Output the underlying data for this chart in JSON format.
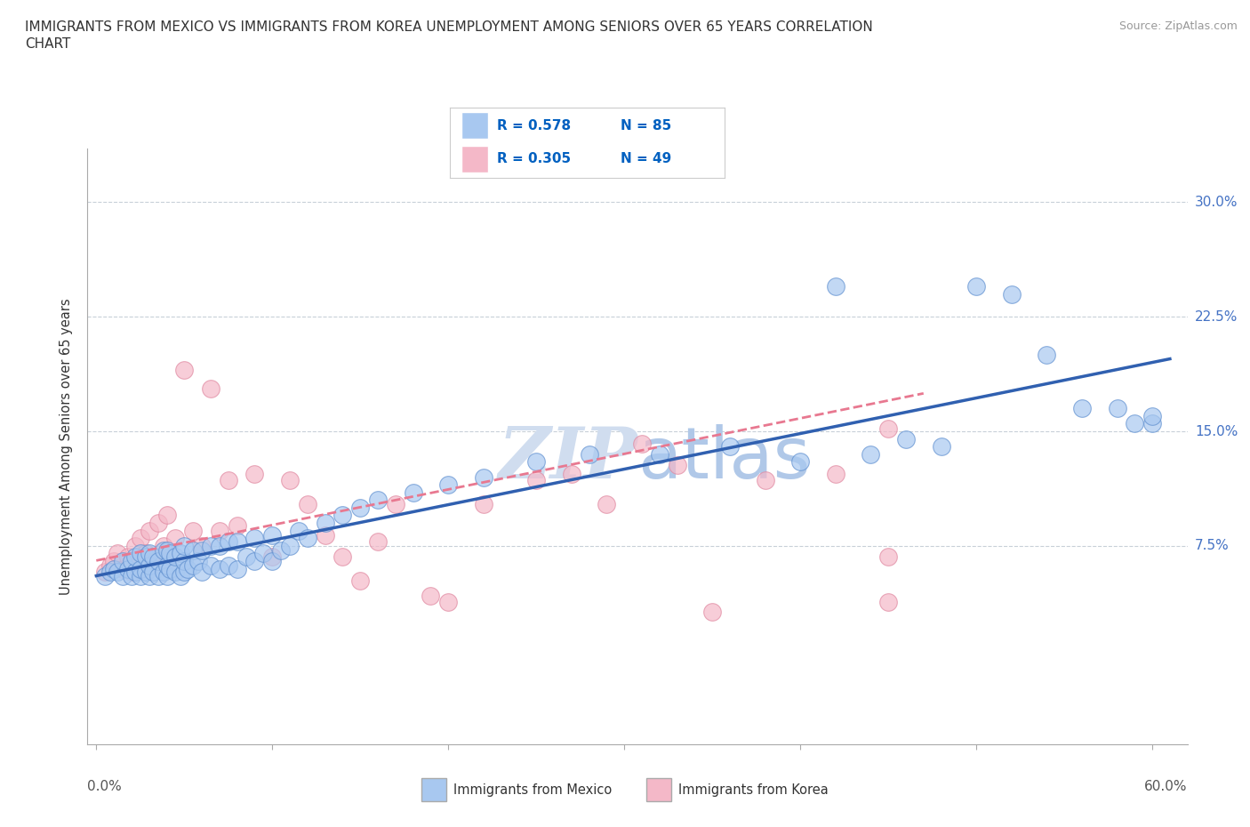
{
  "title_line1": "IMMIGRANTS FROM MEXICO VS IMMIGRANTS FROM KOREA UNEMPLOYMENT AMONG SENIORS OVER 65 YEARS CORRELATION",
  "title_line2": "CHART",
  "source": "Source: ZipAtlas.com",
  "ylabel": "Unemployment Among Seniors over 65 years",
  "ytick_labels": [
    "7.5%",
    "15.0%",
    "22.5%",
    "30.0%"
  ],
  "ytick_values": [
    0.075,
    0.15,
    0.225,
    0.3
  ],
  "xlim": [
    -0.005,
    0.62
  ],
  "ylim": [
    -0.055,
    0.335
  ],
  "mexico_R": 0.578,
  "mexico_N": 85,
  "korea_R": 0.305,
  "korea_N": 49,
  "mexico_color": "#a8c8f0",
  "korea_color": "#f4b8c8",
  "mexico_edge_color": "#6090d0",
  "korea_edge_color": "#e088a0",
  "mexico_line_color": "#3060b0",
  "korea_line_color": "#e87890",
  "legend_R_color": "#0060c0",
  "legend_N_color": "#0060c0",
  "watermark_color": "#d0ddef",
  "background_color": "#ffffff",
  "grid_color": "#c8d0d8",
  "mexico_scatter_x": [
    0.005,
    0.008,
    0.01,
    0.012,
    0.015,
    0.015,
    0.018,
    0.02,
    0.02,
    0.022,
    0.022,
    0.025,
    0.025,
    0.025,
    0.028,
    0.028,
    0.03,
    0.03,
    0.03,
    0.032,
    0.032,
    0.035,
    0.035,
    0.038,
    0.038,
    0.04,
    0.04,
    0.04,
    0.042,
    0.042,
    0.045,
    0.045,
    0.048,
    0.048,
    0.05,
    0.05,
    0.05,
    0.052,
    0.055,
    0.055,
    0.058,
    0.06,
    0.06,
    0.065,
    0.065,
    0.07,
    0.07,
    0.075,
    0.075,
    0.08,
    0.08,
    0.085,
    0.09,
    0.09,
    0.095,
    0.1,
    0.1,
    0.105,
    0.11,
    0.115,
    0.12,
    0.13,
    0.14,
    0.15,
    0.16,
    0.18,
    0.2,
    0.22,
    0.25,
    0.28,
    0.32,
    0.36,
    0.4,
    0.42,
    0.44,
    0.46,
    0.48,
    0.5,
    0.52,
    0.54,
    0.56,
    0.58,
    0.59,
    0.6,
    0.6
  ],
  "mexico_scatter_y": [
    0.055,
    0.058,
    0.06,
    0.058,
    0.055,
    0.065,
    0.06,
    0.055,
    0.065,
    0.058,
    0.068,
    0.055,
    0.06,
    0.07,
    0.058,
    0.068,
    0.055,
    0.062,
    0.07,
    0.058,
    0.068,
    0.055,
    0.065,
    0.058,
    0.072,
    0.055,
    0.062,
    0.072,
    0.06,
    0.07,
    0.058,
    0.068,
    0.055,
    0.07,
    0.058,
    0.065,
    0.075,
    0.06,
    0.062,
    0.072,
    0.065,
    0.058,
    0.072,
    0.062,
    0.075,
    0.06,
    0.075,
    0.062,
    0.078,
    0.06,
    0.078,
    0.068,
    0.065,
    0.08,
    0.07,
    0.065,
    0.082,
    0.072,
    0.075,
    0.085,
    0.08,
    0.09,
    0.095,
    0.1,
    0.105,
    0.11,
    0.115,
    0.12,
    0.13,
    0.135,
    0.135,
    0.14,
    0.13,
    0.245,
    0.135,
    0.145,
    0.14,
    0.245,
    0.24,
    0.2,
    0.165,
    0.165,
    0.155,
    0.155,
    0.16
  ],
  "korea_scatter_x": [
    0.005,
    0.008,
    0.01,
    0.012,
    0.015,
    0.018,
    0.02,
    0.022,
    0.025,
    0.025,
    0.028,
    0.03,
    0.03,
    0.035,
    0.035,
    0.038,
    0.04,
    0.04,
    0.045,
    0.05,
    0.055,
    0.06,
    0.065,
    0.07,
    0.075,
    0.08,
    0.09,
    0.1,
    0.11,
    0.12,
    0.13,
    0.14,
    0.15,
    0.16,
    0.17,
    0.19,
    0.2,
    0.22,
    0.25,
    0.27,
    0.29,
    0.31,
    0.33,
    0.35,
    0.38,
    0.42,
    0.45,
    0.45,
    0.45
  ],
  "korea_scatter_y": [
    0.058,
    0.062,
    0.065,
    0.07,
    0.06,
    0.068,
    0.058,
    0.075,
    0.065,
    0.08,
    0.07,
    0.06,
    0.085,
    0.068,
    0.09,
    0.075,
    0.065,
    0.095,
    0.08,
    0.19,
    0.085,
    0.075,
    0.178,
    0.085,
    0.118,
    0.088,
    0.122,
    0.068,
    0.118,
    0.102,
    0.082,
    0.068,
    0.052,
    0.078,
    0.102,
    0.042,
    0.038,
    0.102,
    0.118,
    0.122,
    0.102,
    0.142,
    0.128,
    0.032,
    0.118,
    0.122,
    0.038,
    0.068,
    0.152
  ]
}
